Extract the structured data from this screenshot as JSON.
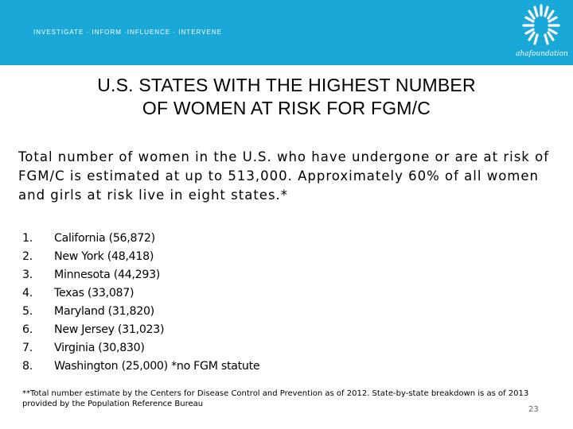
{
  "header": {
    "tagline": "INVESTIGATE · INFORM ·INFLUENCE · INTERVENE",
    "logo_text": "ahafoundation",
    "logo_icon": "sunburst-logo-icon",
    "bar_color": "#1aa8d8"
  },
  "slide": {
    "title_line1": "U.S. STATES WITH THE HIGHEST NUMBER",
    "title_line2": "OF WOMEN AT RISK FOR FGM/C",
    "intro": "Total number of women in the U.S. who have undergone or are at risk of FGM/C is estimated at up to 513,000. Approximately 60% of all women and girls at risk live in eight states.*",
    "states": [
      {
        "num": "1.",
        "text": "California (56,872)"
      },
      {
        "num": "2.",
        "text": "New York (48,418)"
      },
      {
        "num": "3.",
        "text": "Minnesota (44,293)"
      },
      {
        "num": "4.",
        "text": "Texas (33,087)"
      },
      {
        "num": "5.",
        "text": "Maryland (31,820)"
      },
      {
        "num": "6.",
        "text": "New Jersey (31,023)"
      },
      {
        "num": "7.",
        "text": "Virginia (30,830)"
      },
      {
        "num": "8.",
        "text": "Washington (25,000) *no FGM statute"
      }
    ],
    "footnote": "**Total number estimate by the Centers for Disease Control and Prevention as of 2012. State-by-state breakdown is as of 2013 provided by the Population Reference Bureau",
    "page_number": "23"
  }
}
